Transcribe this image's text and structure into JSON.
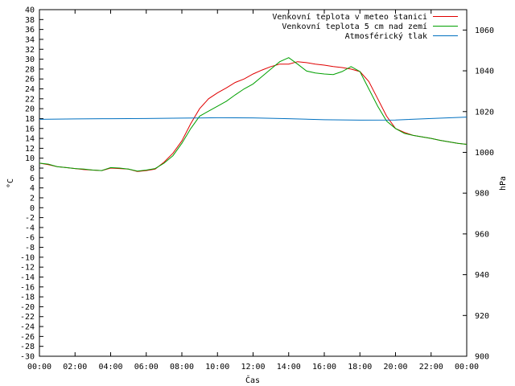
{
  "chart_data": {
    "type": "line",
    "xlabel": "Čas",
    "ylabel_left": "°C",
    "ylabel_right": "hPa",
    "x_ticks": [
      "00:00",
      "02:00",
      "04:00",
      "06:00",
      "08:00",
      "10:00",
      "12:00",
      "14:00",
      "16:00",
      "18:00",
      "20:00",
      "22:00",
      "00:00"
    ],
    "ylim_left": [
      -30,
      40
    ],
    "ylim_right": [
      900,
      1070
    ],
    "y_ticks_left": [
      40,
      38,
      36,
      34,
      32,
      30,
      28,
      26,
      24,
      22,
      20,
      18,
      16,
      14,
      12,
      10,
      8,
      6,
      4,
      2,
      0,
      -2,
      -4,
      -6,
      -8,
      -10,
      -12,
      -14,
      -16,
      -18,
      -20,
      -22,
      -24,
      -26,
      -28,
      -30
    ],
    "y_ticks_right": [
      1060,
      1040,
      1020,
      1000,
      980,
      960,
      940,
      920,
      900
    ],
    "grid": false,
    "legend_position": "top-right",
    "series": [
      {
        "name": "Venkovní teplota v meteo stanici",
        "color": "#e00000",
        "axis": "left",
        "x": [
          0,
          0.5,
          1,
          1.5,
          2,
          2.5,
          3,
          3.5,
          4,
          4.5,
          5,
          5.5,
          6,
          6.5,
          7,
          7.5,
          8,
          8.5,
          9,
          9.5,
          10,
          10.5,
          11,
          11.5,
          12,
          12.5,
          13,
          13.5,
          14,
          14.5,
          15,
          15.5,
          16,
          16.5,
          17,
          17.5,
          18,
          18.5,
          19,
          19.5,
          20,
          20.5,
          21,
          21.5,
          22,
          22.5,
          23,
          23.5,
          24
        ],
        "y": [
          9.0,
          8.7,
          8.3,
          8.1,
          7.9,
          7.7,
          7.6,
          7.5,
          8.0,
          7.9,
          7.8,
          7.3,
          7.5,
          7.8,
          9.2,
          11.0,
          13.5,
          17.0,
          20.0,
          22.0,
          23.2,
          24.2,
          25.3,
          26.0,
          27.0,
          27.8,
          28.5,
          29.0,
          29.0,
          29.5,
          29.3,
          29.0,
          28.8,
          28.5,
          28.3,
          28.0,
          27.5,
          25.5,
          22.0,
          18.5,
          16.0,
          15.2,
          14.6,
          14.3,
          14.0,
          13.6,
          13.3,
          13.0,
          12.8
        ]
      },
      {
        "name": "Venkovní teplota 5 cm nad zemí",
        "color": "#00a000",
        "axis": "left",
        "x": [
          0,
          0.5,
          1,
          1.5,
          2,
          2.5,
          3,
          3.5,
          4,
          4.5,
          5,
          5.5,
          6,
          6.5,
          7,
          7.5,
          8,
          8.5,
          9,
          9.5,
          10,
          10.5,
          11,
          11.5,
          12,
          12.5,
          13,
          13.5,
          14,
          14.5,
          15,
          15.5,
          16,
          16.5,
          17,
          17.5,
          18,
          18.5,
          19,
          19.5,
          20,
          20.5,
          21,
          21.5,
          22,
          22.5,
          23,
          23.5,
          24
        ],
        "y": [
          9.0,
          8.8,
          8.3,
          8.1,
          7.9,
          7.8,
          7.6,
          7.5,
          8.1,
          8.0,
          7.8,
          7.4,
          7.6,
          7.9,
          9.0,
          10.5,
          13.0,
          16.0,
          18.5,
          19.5,
          20.5,
          21.5,
          22.8,
          24.0,
          25.0,
          26.5,
          28.0,
          29.5,
          30.3,
          29.0,
          27.6,
          27.2,
          27.0,
          26.9,
          27.5,
          28.5,
          27.5,
          24.0,
          20.5,
          17.5,
          16.0,
          15.0,
          14.6,
          14.3,
          14.0,
          13.6,
          13.3,
          13.0,
          12.8
        ]
      },
      {
        "name": "Atmosférický tlak",
        "color": "#0070c0",
        "axis": "right",
        "x": [
          0,
          2,
          4,
          6,
          8,
          10,
          12,
          14,
          16,
          18,
          20,
          22,
          24
        ],
        "y": [
          1016.2,
          1016.4,
          1016.5,
          1016.6,
          1016.8,
          1017.0,
          1016.9,
          1016.5,
          1016.0,
          1015.8,
          1015.9,
          1016.6,
          1017.3
        ]
      }
    ]
  }
}
